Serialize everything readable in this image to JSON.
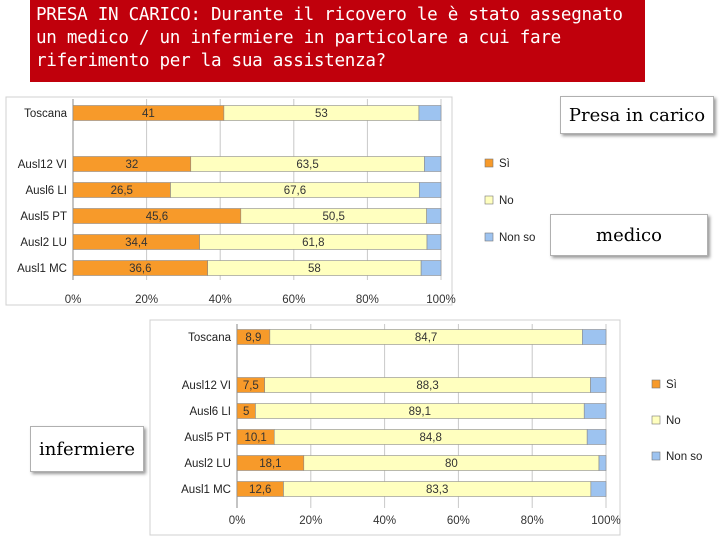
{
  "title_lines": [
    "PRESA IN CARICO: Durante il ricovero le è stato assegnato",
    "un medico /   un infermiere in particolare a cui fare",
    "riferimento per la sua assistenza?"
  ],
  "labels": {
    "presa": "Presa in carico",
    "medico": "medico",
    "infermiere": "infermiere"
  },
  "colors": {
    "si": "#f79a2a",
    "no": "#ffffbf",
    "nonso": "#9dc3f0",
    "title_bg": "#c0000c"
  },
  "chart_data": [
    {
      "type": "bar",
      "orientation": "horizontal",
      "stacked": "100%",
      "categories": [
        "Toscana",
        "Ausl12 VI",
        "Ausl6 LI",
        "Ausl5 PT",
        "Ausl2 LU",
        "Ausl1 MC"
      ],
      "series": [
        {
          "name": "Sì",
          "values": [
            41,
            32,
            26.5,
            45.6,
            34.4,
            36.6
          ],
          "labels": [
            "41",
            "32",
            "26,5",
            "45,6",
            "34,4",
            "36,6"
          ]
        },
        {
          "name": "No",
          "values": [
            53,
            63.5,
            67.6,
            50.5,
            61.8,
            58
          ],
          "labels": [
            "53",
            "63,5",
            "67,6",
            "50,5",
            "61,8",
            "58"
          ]
        },
        {
          "name": "Non so",
          "values": [
            6,
            4.5,
            5.9,
            3.9,
            3.8,
            5.4
          ]
        }
      ],
      "xticks": [
        "0%",
        "20%",
        "40%",
        "60%",
        "80%",
        "100%"
      ],
      "xlim": [
        0,
        100
      ],
      "legend_position": "right"
    },
    {
      "type": "bar",
      "orientation": "horizontal",
      "stacked": "100%",
      "categories": [
        "Toscana",
        "Ausl12 VI",
        "Ausl6 LI",
        "Ausl5 PT",
        "Ausl2 LU",
        "Ausl1 MC"
      ],
      "series": [
        {
          "name": "Sì",
          "values": [
            8.9,
            7.5,
            5,
            10.1,
            18.1,
            12.6
          ],
          "labels": [
            "8,9",
            "7,5",
            "5",
            "10,1",
            "18,1",
            "12,6"
          ]
        },
        {
          "name": "No",
          "values": [
            84.7,
            88.3,
            89.1,
            84.8,
            80,
            83.3
          ],
          "labels": [
            "84,7",
            "88,3",
            "89,1",
            "84,8",
            "80",
            "83,3"
          ]
        },
        {
          "name": "Non so",
          "values": [
            6.4,
            4.2,
            5.9,
            5.1,
            1.9,
            4.1
          ]
        }
      ],
      "xticks": [
        "0%",
        "20%",
        "40%",
        "60%",
        "80%",
        "100%"
      ],
      "xlim": [
        0,
        100
      ],
      "legend_position": "right"
    }
  ]
}
